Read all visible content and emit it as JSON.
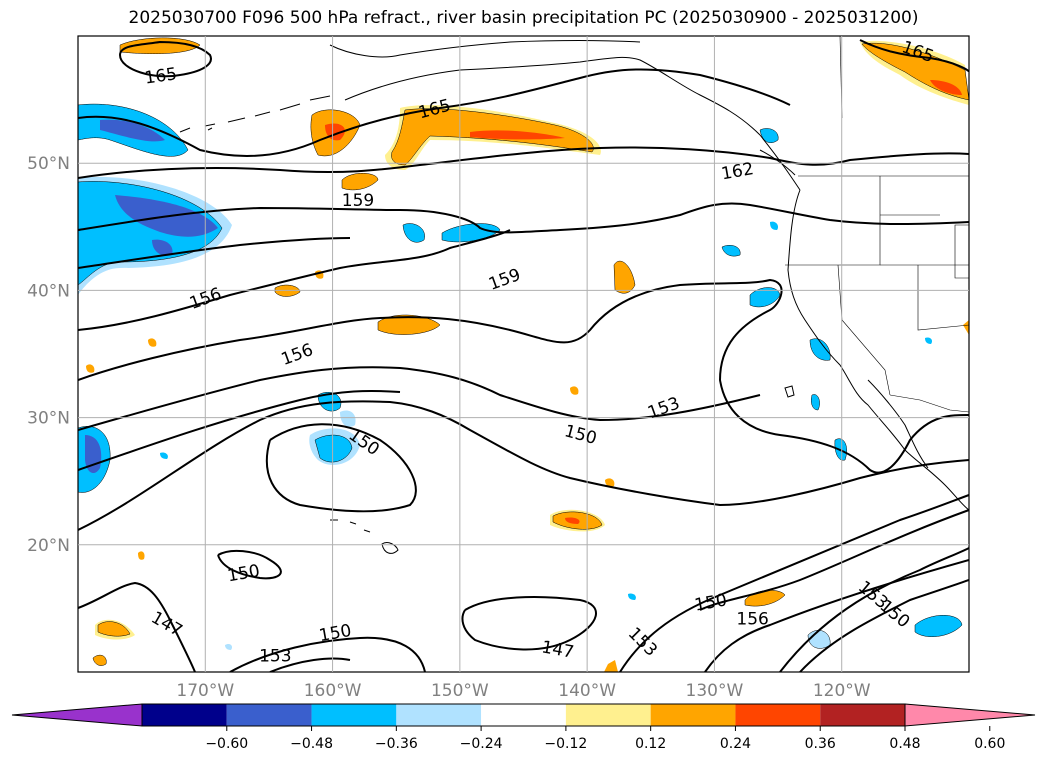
{
  "title": "2025030700 F096 500 hPa refract., river basin precipitation PC (2025030900 - 2025031200)",
  "map": {
    "lon_range": [
      -180,
      -110
    ],
    "lat_range": [
      10,
      60
    ],
    "lon_ticks": [
      -170,
      -160,
      -150,
      -140,
      -130,
      -120
    ],
    "lat_ticks": [
      20,
      30,
      40,
      50
    ],
    "lon_tick_labels": [
      "170°W",
      "160°W",
      "150°W",
      "140°W",
      "130°W",
      "120°W"
    ],
    "lat_tick_labels": [
      "20°N",
      "30°N",
      "40°N",
      "50°N"
    ],
    "grid": true
  },
  "contour_labels": [
    {
      "text": "165",
      "lon": -173.5,
      "lat": 56.9,
      "rot": -8
    },
    {
      "text": "165",
      "lon": -152,
      "lat": 54.3,
      "rot": -15
    },
    {
      "text": "165",
      "lon": -114,
      "lat": 58.8,
      "rot": 20
    },
    {
      "text": "162",
      "lon": -128.2,
      "lat": 49.4,
      "rot": -10
    },
    {
      "text": "159",
      "lon": -158,
      "lat": 47.1,
      "rot": 0
    },
    {
      "text": "159",
      "lon": -146.5,
      "lat": 40.9,
      "rot": -20
    },
    {
      "text": "156",
      "lon": -170,
      "lat": 39.4,
      "rot": -20
    },
    {
      "text": "156",
      "lon": -162.8,
      "lat": 35.0,
      "rot": -20
    },
    {
      "text": "156",
      "lon": -127,
      "lat": 14.2,
      "rot": 0
    },
    {
      "text": "153",
      "lon": -134,
      "lat": 30.8,
      "rot": -20
    },
    {
      "text": "153",
      "lon": -164.5,
      "lat": 11.3,
      "rot": 0
    },
    {
      "text": "153",
      "lon": -135.6,
      "lat": 12.4,
      "rot": 45
    },
    {
      "text": "153",
      "lon": -117.5,
      "lat": 16.1,
      "rot": 40
    },
    {
      "text": "150",
      "lon": -157.5,
      "lat": 28.1,
      "rot": 35
    },
    {
      "text": "150",
      "lon": -140.5,
      "lat": 28.7,
      "rot": 15
    },
    {
      "text": "150",
      "lon": -167,
      "lat": 17.8,
      "rot": -10
    },
    {
      "text": "150",
      "lon": -159.8,
      "lat": 13.1,
      "rot": -10
    },
    {
      "text": "150",
      "lon": -130.3,
      "lat": 15.5,
      "rot": -10
    },
    {
      "text": "150",
      "lon": -115.8,
      "lat": 14.6,
      "rot": 40
    },
    {
      "text": "147",
      "lon": -173,
      "lat": 13.8,
      "rot": 30
    },
    {
      "text": "147",
      "lon": -142.3,
      "lat": 11.8,
      "rot": 10
    }
  ],
  "colorbar": {
    "ticks": [
      "−0.60",
      "−0.48",
      "−0.36",
      "−0.24",
      "−0.12",
      "0.12",
      "0.24",
      "0.36",
      "0.48",
      "0.60"
    ],
    "colors": [
      "#9932cc",
      "#00008b",
      "#3a5fcd",
      "#00bfff",
      "#b0e2ff",
      "#ffffff",
      "#fff08f",
      "#ffa500",
      "#ff4500",
      "#b22222",
      "#ff88aa"
    ]
  },
  "colors": {
    "contour": "#000000",
    "grid": "#b0b0b0",
    "tick_label": "#808080",
    "coast": "#000000"
  }
}
